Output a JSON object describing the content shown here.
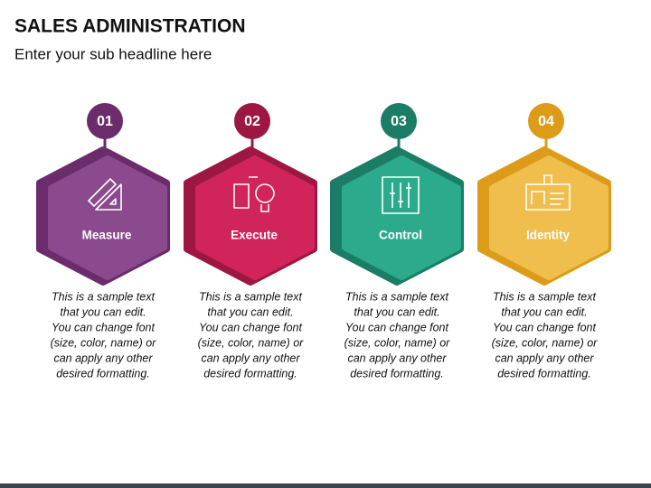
{
  "header": {
    "title": "SALES ADMINISTRATION",
    "subtitle": "Enter your sub headline here"
  },
  "items": [
    {
      "number": "01",
      "label": "Measure",
      "color": "#8c4a8e",
      "dark": "#6b2c6c",
      "text": [
        "This is a sample text",
        "that you can edit.",
        "You can change font",
        "(size, color, name) or",
        "can apply any other",
        "desired formatting."
      ]
    },
    {
      "number": "02",
      "label": "Execute",
      "color": "#d1245b",
      "dark": "#9c1843",
      "text": [
        "This is a sample text",
        "that you can edit.",
        "You can change font",
        "(size, color, name) or",
        "can apply any other",
        "desired formatting."
      ]
    },
    {
      "number": "03",
      "label": "Control",
      "color": "#2bab8c",
      "dark": "#1c7d66",
      "text": [
        "This is a sample text",
        "that you can edit.",
        "You can change font",
        "(size, color, name) or",
        "can apply any other",
        "desired formatting."
      ]
    },
    {
      "number": "04",
      "label": "Identity",
      "color": "#f0be4c",
      "dark": "#dc9c1a",
      "text": [
        "This is a sample text",
        "that you can edit.",
        "You can change font",
        "(size, color, name) or",
        "can apply any other",
        "desired formatting."
      ]
    }
  ]
}
